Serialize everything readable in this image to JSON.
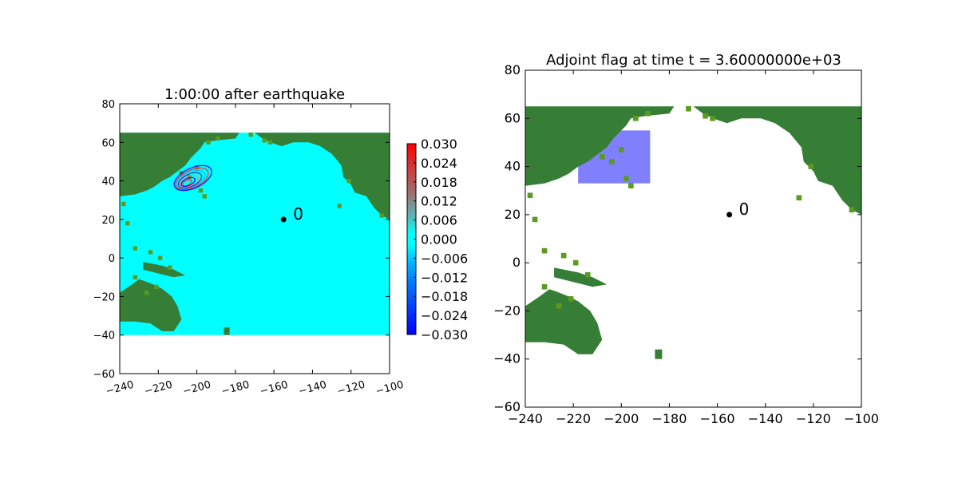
{
  "chart_data": [
    {
      "type": "heatmap",
      "title": "1:00:00 after earthquake",
      "xlim": [
        -240,
        -100
      ],
      "ylim": [
        -60,
        80
      ],
      "xticks": [
        -240,
        -220,
        -200,
        -180,
        -160,
        -140,
        -120,
        -100
      ],
      "yticks": [
        -60,
        -40,
        -20,
        0,
        20,
        40,
        60,
        80
      ],
      "xtick_labels": [
        "−240",
        "−220",
        "−200",
        "−180",
        "−160",
        "−140",
        "−120",
        "−100"
      ],
      "ytick_labels": [
        "−60",
        "−40",
        "−20",
        "0",
        "20",
        "40",
        "60",
        "80"
      ],
      "domain": {
        "x": [
          -240,
          -100
        ],
        "y": [
          -40,
          65
        ]
      },
      "gauge": {
        "x": -155,
        "y": 20,
        "label": "0"
      },
      "colorbar": {
        "range": [
          -0.03,
          0.03
        ],
        "tick_labels": [
          "0.030",
          "0.024",
          "0.018",
          "0.012",
          "0.006",
          "0.000",
          "−0.006",
          "−0.012",
          "−0.018",
          "−0.024",
          "−0.030"
        ]
      },
      "colors": {
        "water": "#00ffff",
        "land": "#367e36",
        "land_light": "#5a9a1f"
      }
    },
    {
      "type": "heatmap",
      "title": "Adjoint flag at time t = 3.60000000e+03",
      "xlim": [
        -240,
        -100
      ],
      "ylim": [
        -60,
        80
      ],
      "xticks": [
        -240,
        -220,
        -200,
        -180,
        -160,
        -140,
        -120,
        -100
      ],
      "yticks": [
        -60,
        -40,
        -20,
        0,
        20,
        40,
        60,
        80
      ],
      "xtick_labels": [
        "−240",
        "−220",
        "−200",
        "−180",
        "−160",
        "−140",
        "−120",
        "−100"
      ],
      "ytick_labels": [
        "−60",
        "−40",
        "−20",
        "0",
        "20",
        "40",
        "60",
        "80"
      ],
      "flag_region": {
        "x": [
          -218,
          -188
        ],
        "y": [
          33,
          55
        ]
      },
      "gauge": {
        "x": -155,
        "y": 20,
        "label": "0"
      },
      "colors": {
        "flag": "#8080ff",
        "land": "#367e36",
        "land_light": "#5a9a1f"
      }
    }
  ]
}
